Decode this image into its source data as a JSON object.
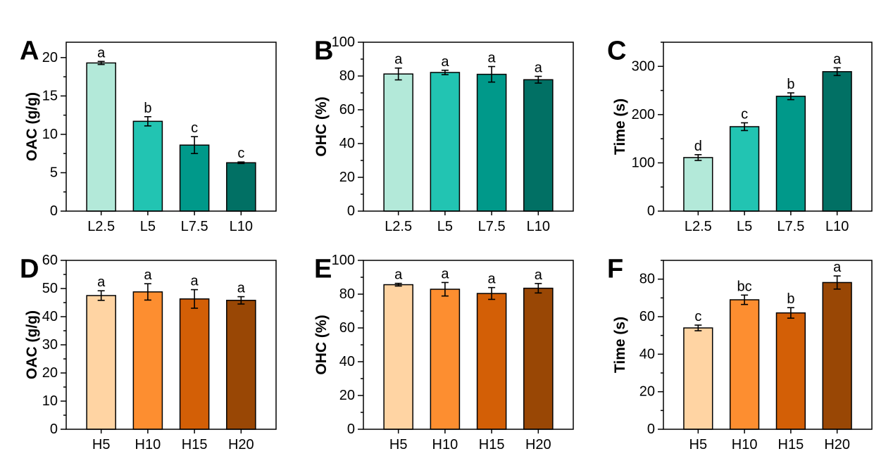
{
  "chart_data": [
    {
      "panel": "A",
      "type": "bar",
      "ylabel": "OAC (g/g)",
      "categories": [
        "L2.5",
        "L5",
        "L7.5",
        "L10"
      ],
      "values": [
        19.3,
        11.7,
        8.6,
        6.3
      ],
      "errors": [
        0.2,
        0.6,
        1.1,
        0.1
      ],
      "labels": [
        "a",
        "b",
        "c",
        "c"
      ],
      "colors": [
        "#b3e9d9",
        "#22c4b2",
        "#00998a",
        "#017064"
      ],
      "ylim": [
        0,
        22
      ],
      "yticks": [
        0,
        5,
        10,
        15,
        20
      ],
      "ytick_labels": [
        "0",
        "5",
        "10",
        "15",
        "20"
      ],
      "minor_step": 2.5
    },
    {
      "panel": "B",
      "type": "bar",
      "ylabel": "OHC (%)",
      "categories": [
        "L2.5",
        "L5",
        "L7.5",
        "L10"
      ],
      "values": [
        81.2,
        82.1,
        81.0,
        77.8
      ],
      "errors": [
        3.5,
        1.3,
        4.6,
        2.0
      ],
      "labels": [
        "a",
        "a",
        "a",
        "a"
      ],
      "colors": [
        "#b3e9d9",
        "#22c4b2",
        "#00998a",
        "#017064"
      ],
      "ylim": [
        0,
        100
      ],
      "yticks": [
        0,
        20,
        40,
        60,
        80,
        100
      ],
      "ytick_labels": [
        "0",
        "20",
        "40",
        "60",
        "80",
        "100"
      ],
      "minor_step": 10
    },
    {
      "panel": "C",
      "type": "bar",
      "ylabel": "Time (s)",
      "categories": [
        "L2.5",
        "L5",
        "L7.5",
        "L10"
      ],
      "values": [
        111,
        175,
        238,
        289
      ],
      "errors": [
        6,
        8,
        7,
        8
      ],
      "labels": [
        "d",
        "c",
        "b",
        "a"
      ],
      "colors": [
        "#b3e9d9",
        "#22c4b2",
        "#00998a",
        "#017064"
      ],
      "ylim": [
        0,
        350
      ],
      "yticks": [
        0,
        100,
        200,
        300
      ],
      "ytick_labels": [
        "0",
        "100",
        "200",
        "300"
      ],
      "minor_step": 50
    },
    {
      "panel": "D",
      "type": "bar",
      "ylabel": "OAC (g/g)",
      "categories": [
        "H5",
        "H10",
        "H15",
        "H20"
      ],
      "values": [
        47.5,
        48.8,
        46.3,
        45.8
      ],
      "errors": [
        1.7,
        2.9,
        3.3,
        1.3
      ],
      "labels": [
        "a",
        "a",
        "a",
        "a"
      ],
      "colors": [
        "#ffd4a3",
        "#fd8e30",
        "#d35f06",
        "#994705"
      ],
      "ylim": [
        0,
        60
      ],
      "yticks": [
        0,
        10,
        20,
        30,
        40,
        50,
        60
      ],
      "ytick_labels": [
        "0",
        "10",
        "20",
        "30",
        "40",
        "50",
        "60"
      ],
      "minor_step": 5
    },
    {
      "panel": "E",
      "type": "bar",
      "ylabel": "OHC (%)",
      "categories": [
        "H5",
        "H10",
        "H15",
        "H20"
      ],
      "values": [
        85.6,
        82.9,
        80.4,
        83.5
      ],
      "errors": [
        0.8,
        4.0,
        3.5,
        2.8
      ],
      "labels": [
        "a",
        "a",
        "a",
        "a"
      ],
      "colors": [
        "#ffd4a3",
        "#fd8e30",
        "#d35f06",
        "#994705"
      ],
      "ylim": [
        0,
        100
      ],
      "yticks": [
        0,
        20,
        40,
        60,
        80,
        100
      ],
      "ytick_labels": [
        "0",
        "20",
        "40",
        "60",
        "80",
        "100"
      ],
      "minor_step": 10
    },
    {
      "panel": "F",
      "type": "bar",
      "ylabel": "Time (s)",
      "categories": [
        "H5",
        "H10",
        "H15",
        "H20"
      ],
      "values": [
        54.0,
        69.0,
        62.0,
        78.2
      ],
      "errors": [
        1.5,
        2.5,
        2.8,
        3.5
      ],
      "labels": [
        "c",
        "bc",
        "b",
        "a"
      ],
      "colors": [
        "#ffd4a3",
        "#fd8e30",
        "#d35f06",
        "#994705"
      ],
      "ylim": [
        0,
        90
      ],
      "yticks": [
        0,
        20,
        40,
        60,
        80
      ],
      "ytick_labels": [
        "0",
        "20",
        "40",
        "60",
        "80"
      ],
      "minor_step": 10
    }
  ]
}
